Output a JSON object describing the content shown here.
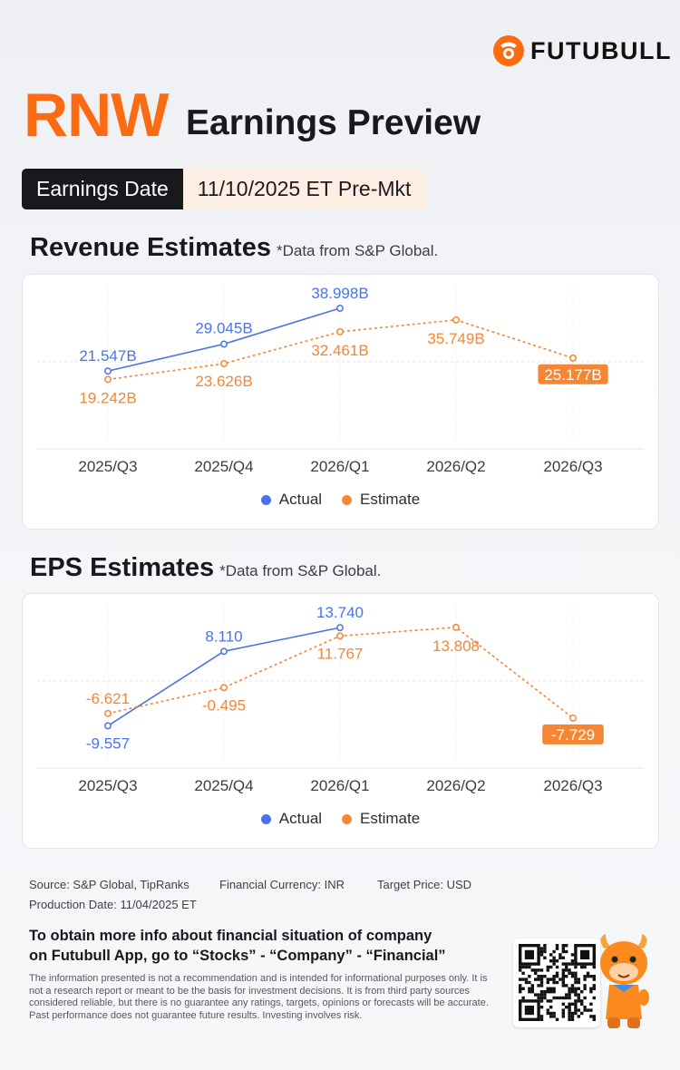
{
  "brand": {
    "name": "FUTUBULL",
    "accent": "#fb6b12"
  },
  "header": {
    "ticker": "RNW",
    "title": "Earnings Preview"
  },
  "earnings_date": {
    "label": "Earnings Date",
    "value": "11/10/2025 ET Pre-Mkt"
  },
  "revenue": {
    "title": "Revenue Estimates",
    "note": "*Data from S&P Global."
  },
  "eps": {
    "title": "EPS Estimates",
    "note": "*Data from S&P Global."
  },
  "legend": {
    "actual": "Actual",
    "estimate": "Estimate",
    "actual_color": "#4a73e8",
    "estimate_color": "#f58634"
  },
  "chart_data": [
    {
      "type": "line",
      "title": "Revenue Estimates",
      "categories": [
        "2025/Q3",
        "2025/Q4",
        "2026/Q1",
        "2026/Q2",
        "2026/Q3"
      ],
      "series": [
        {
          "name": "Actual",
          "values": [
            21.547,
            29.045,
            38.998,
            null,
            null
          ],
          "labels": [
            "21.547B",
            "29.045B",
            "38.998B",
            null,
            null
          ],
          "color": "#4a73e8"
        },
        {
          "name": "Estimate",
          "values": [
            19.242,
            23.626,
            32.461,
            35.749,
            25.177
          ],
          "labels": [
            "19.242B",
            "23.626B",
            "32.461B",
            "35.749B",
            "25.177B"
          ],
          "color": "#f58634"
        }
      ],
      "unit": "B",
      "ylim": [
        8,
        42
      ]
    },
    {
      "type": "line",
      "title": "EPS Estimates",
      "categories": [
        "2025/Q3",
        "2025/Q4",
        "2026/Q1",
        "2026/Q2",
        "2026/Q3"
      ],
      "series": [
        {
          "name": "Actual",
          "values": [
            -9.557,
            8.11,
            13.74,
            null,
            null
          ],
          "labels": [
            "-9.557",
            "8.110",
            "13.740",
            null,
            null
          ],
          "color": "#4a73e8"
        },
        {
          "name": "Estimate",
          "values": [
            -6.621,
            -0.495,
            11.767,
            13.808,
            -7.729
          ],
          "labels": [
            "-6.621",
            "-0.495",
            "11.767",
            "13.808",
            "-7.729"
          ],
          "color": "#f58634"
        }
      ],
      "ylim": [
        -17,
        17
      ]
    }
  ],
  "footer": {
    "source": "Source: S&P Global, TipRanks",
    "currency": "Financial Currency: INR",
    "target": "Target Price: USD",
    "production": "Production Date: 11/04/2025 ET",
    "cta_line1": "To obtain more info about financial situation of company",
    "cta_line2": "on Futubull App, go to “Stocks” - “Company” - “Financial”",
    "disclaimer": "The information presented is not a recommendation and is intended for informational purposes only. It is not a research report or meant to be the basis for investment decisions. It is from third party sources considered reliable, but there is no guarantee any ratings, targets, opinions or forecasts will be accurate. Past performance does not guarantee future results. Investing involves risk."
  }
}
